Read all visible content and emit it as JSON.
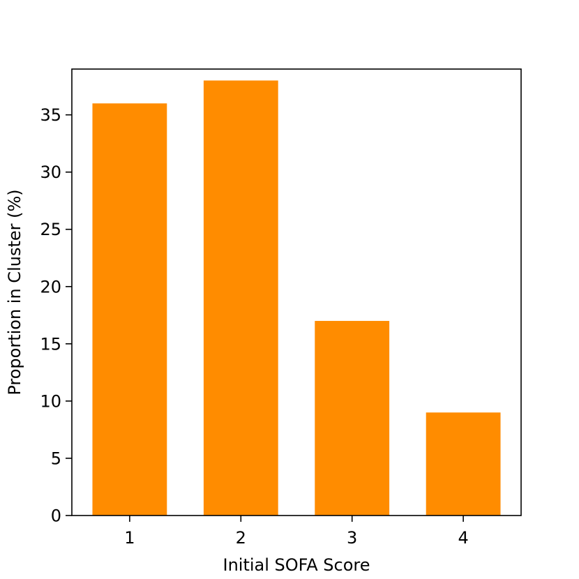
{
  "chart_data": {
    "type": "bar",
    "title": "",
    "xlabel": "Initial SOFA Score",
    "ylabel": "Proportion in Cluster (%)",
    "categories": [
      "1",
      "2",
      "3",
      "4"
    ],
    "values": [
      36,
      38,
      17,
      9
    ],
    "ylim": [
      0,
      39
    ],
    "yticks": [
      0,
      5,
      10,
      15,
      20,
      25,
      30,
      35
    ],
    "bar_color": "#ff8c00",
    "grid": false,
    "legend": "none"
  }
}
